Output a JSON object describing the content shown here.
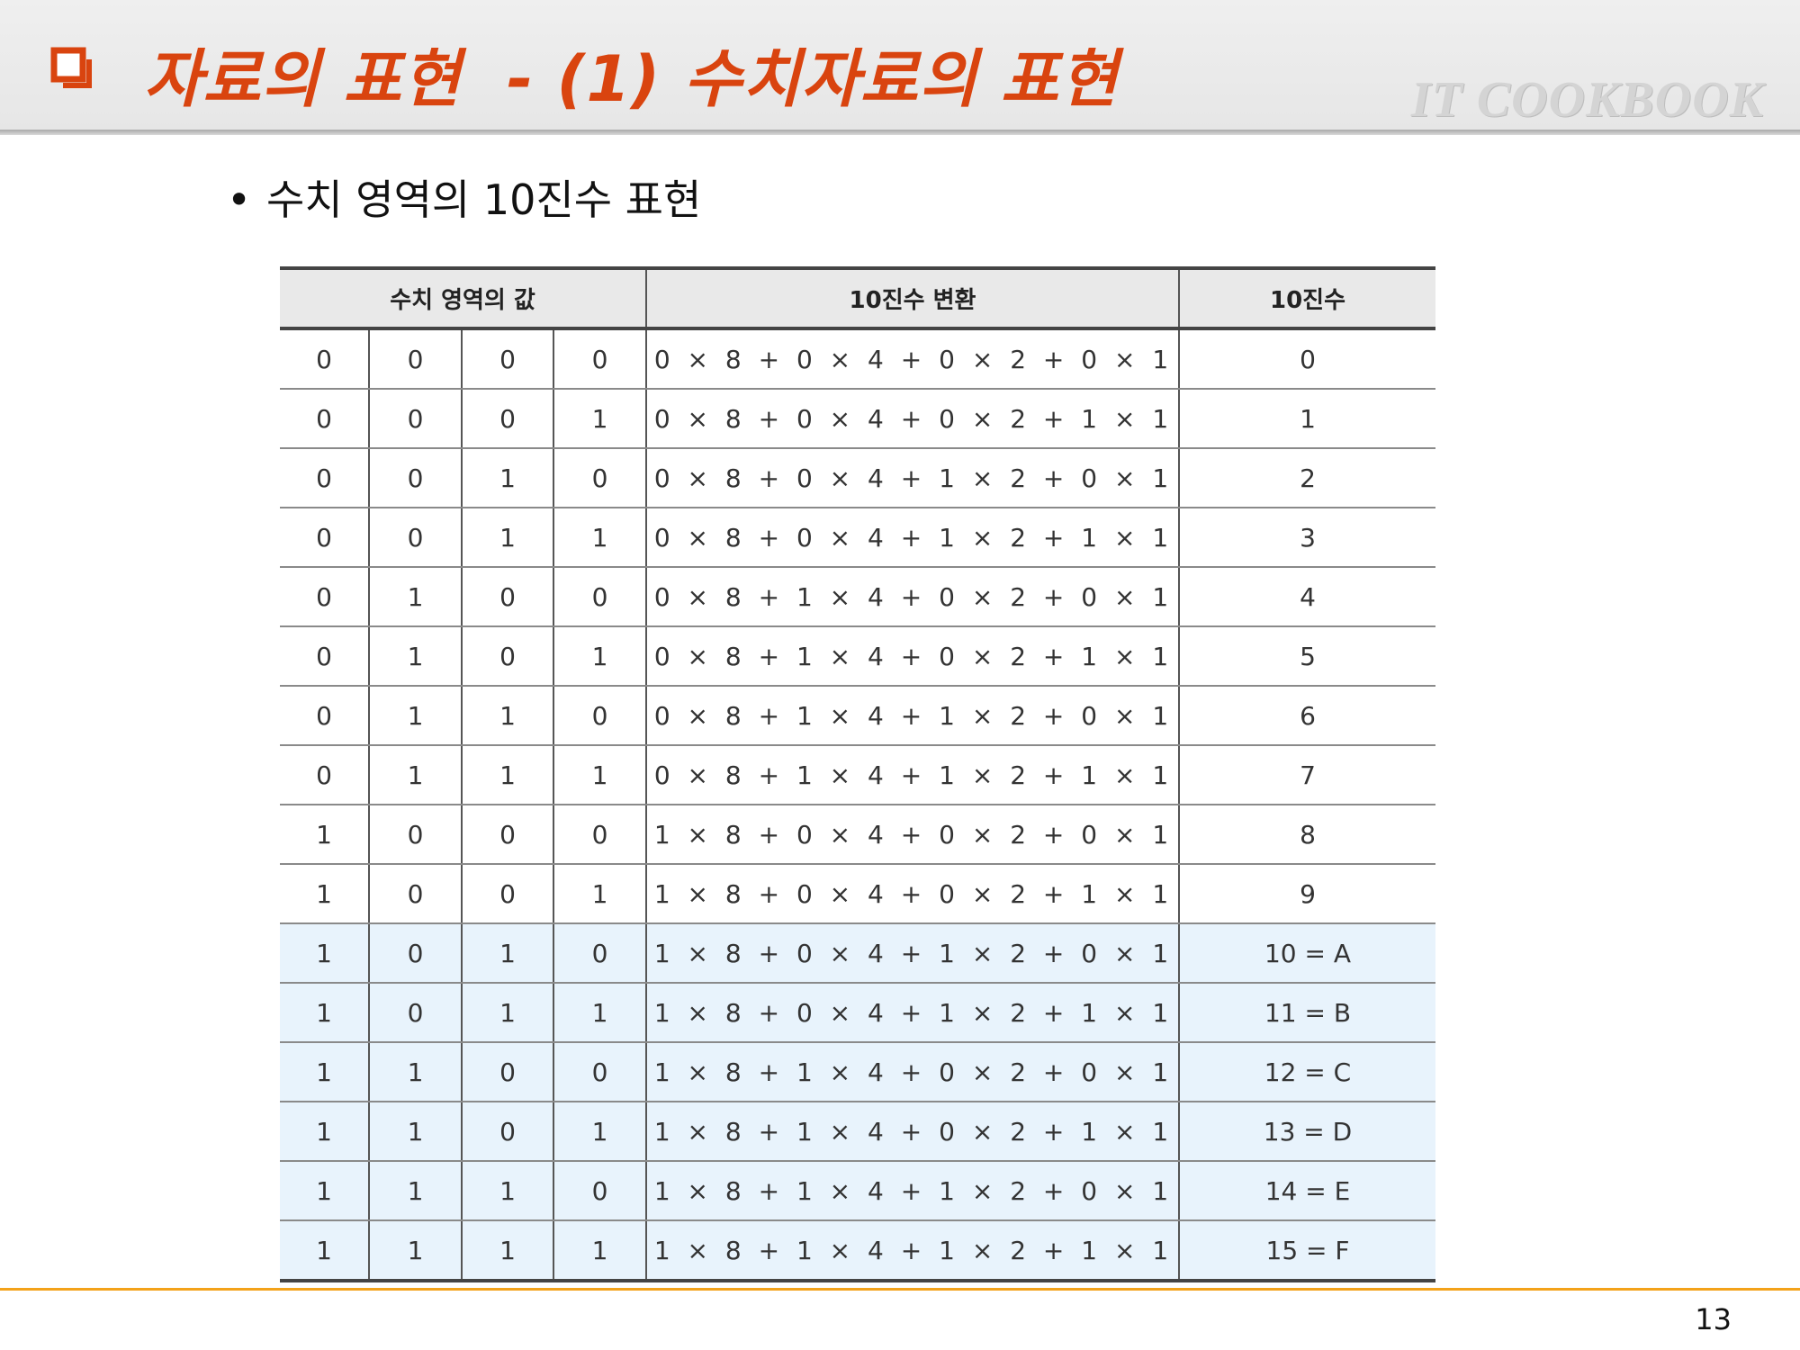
{
  "header": {
    "title": "자료의 표현  - (1) 수치자료의 표현",
    "brand": "IT COOKBOOK",
    "accent_color": "#d9440f",
    "icon": "checkbox-icon"
  },
  "bullet": {
    "symbol": "•",
    "text": "수치 영역의 10진수 표현"
  },
  "table": {
    "headers": [
      "수치 영역의 값",
      "10진수 변환",
      "10진수"
    ],
    "rows": [
      {
        "bits": [
          "0",
          "0",
          "0",
          "0"
        ],
        "formula": "0 × 8 + 0 × 4 + 0 × 2 + 0 × 1",
        "decimal": "0"
      },
      {
        "bits": [
          "0",
          "0",
          "0",
          "1"
        ],
        "formula": "0 × 8 + 0 × 4 + 0 × 2 + 1 × 1",
        "decimal": "1"
      },
      {
        "bits": [
          "0",
          "0",
          "1",
          "0"
        ],
        "formula": "0 × 8 + 0 × 4 + 1 × 2 + 0 × 1",
        "decimal": "2"
      },
      {
        "bits": [
          "0",
          "0",
          "1",
          "1"
        ],
        "formula": "0 × 8 + 0 × 4 + 1 × 2 + 1 × 1",
        "decimal": "3"
      },
      {
        "bits": [
          "0",
          "1",
          "0",
          "0"
        ],
        "formula": "0 × 8 + 1 × 4 + 0 × 2 + 0 × 1",
        "decimal": "4"
      },
      {
        "bits": [
          "0",
          "1",
          "0",
          "1"
        ],
        "formula": "0 × 8 + 1 × 4 + 0 × 2 + 1 × 1",
        "decimal": "5"
      },
      {
        "bits": [
          "0",
          "1",
          "1",
          "0"
        ],
        "formula": "0 × 8 + 1 × 4 + 1 × 2 + 0 × 1",
        "decimal": "6"
      },
      {
        "bits": [
          "0",
          "1",
          "1",
          "1"
        ],
        "formula": "0 × 8 + 1 × 4 + 1 × 2 + 1 × 1",
        "decimal": "7"
      },
      {
        "bits": [
          "1",
          "0",
          "0",
          "0"
        ],
        "formula": "1 × 8 + 0 × 4 + 0 × 2 + 0 × 1",
        "decimal": "8"
      },
      {
        "bits": [
          "1",
          "0",
          "0",
          "1"
        ],
        "formula": "1 × 8 + 0 × 4 + 0 × 2 + 1 × 1",
        "decimal": "9"
      },
      {
        "bits": [
          "1",
          "0",
          "1",
          "0"
        ],
        "formula": "1 × 8 + 0 × 4 + 1 × 2 + 0 × 1",
        "decimal": "10 = A"
      },
      {
        "bits": [
          "1",
          "0",
          "1",
          "1"
        ],
        "formula": "1 × 8 + 0 × 4 + 1 × 2 + 1 × 1",
        "decimal": "11 = B"
      },
      {
        "bits": [
          "1",
          "1",
          "0",
          "0"
        ],
        "formula": "1 × 8 + 1 × 4 + 0 × 2 + 0 × 1",
        "decimal": "12 = C"
      },
      {
        "bits": [
          "1",
          "1",
          "0",
          "1"
        ],
        "formula": "1 × 8 + 1 × 4 + 0 × 2 + 1 × 1",
        "decimal": "13 = D"
      },
      {
        "bits": [
          "1",
          "1",
          "1",
          "0"
        ],
        "formula": "1 × 8 + 1 × 4 + 1 × 2 + 0 × 1",
        "decimal": "14 = E"
      },
      {
        "bits": [
          "1",
          "1",
          "1",
          "1"
        ],
        "formula": "1 × 8 + 1 × 4 + 1 × 2 + 1 × 1",
        "decimal": "15 = F"
      }
    ],
    "hex_row_color": "#e8f3fc"
  },
  "footer": {
    "page_number": "13",
    "rule_color": "#f3a21a"
  }
}
